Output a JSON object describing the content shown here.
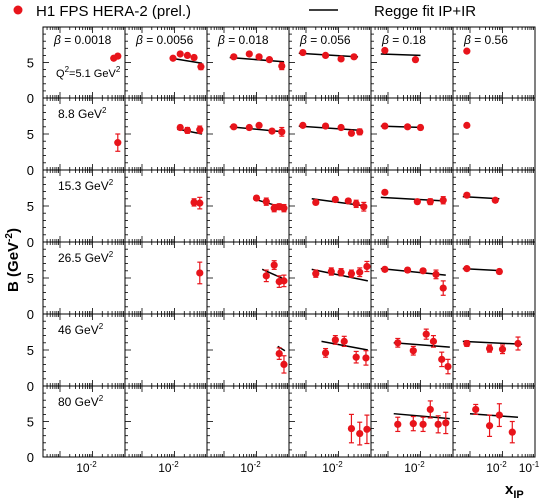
{
  "chart_data": {
    "type": "scatter",
    "legend": {
      "data_label": "H1 FPS HERA-2 (prel.)",
      "fit_label": "Regge fit IP+IR",
      "data_color": "#e8141b",
      "fit_color": "#000000",
      "placement": "top"
    },
    "ylabel": "B (GeV",
    "ylabel_sup": "-2",
    "ylabel_close": ")",
    "xlabel": "x",
    "xlabel_sub": "IP",
    "x_scale": "log",
    "xlim": [
      0.0003,
      0.1
    ],
    "ylim": [
      0,
      10
    ],
    "yticks": [
      "0",
      "5"
    ],
    "xtick_labels": [
      "10",
      "-2",
      "10",
      "-1"
    ],
    "beta_prefix": "β",
    "betas": [
      "= 0.0018",
      "= 0.0056",
      "= 0.018",
      "= 0.056",
      "= 0.18",
      "= 0.56"
    ],
    "q2_prefix": "Q",
    "q2_rows": [
      {
        "label": "=5.1 GeV",
        "sup": "2",
        "q2sup": "2"
      },
      {
        "label": "8.8 GeV",
        "sup": "2"
      },
      {
        "label": "15.3 GeV",
        "sup": "2"
      },
      {
        "label": "26.5 GeV",
        "sup": "2"
      },
      {
        "label": "46 GeV",
        "sup": "2"
      },
      {
        "label": "80 GeV",
        "sup": "2"
      }
    ],
    "panels": [
      {
        "row": 0,
        "col": 0,
        "points": [
          {
            "x": 0.045,
            "y": 5.6,
            "err": 0.3
          },
          {
            "x": 0.06,
            "y": 5.9,
            "err": 0.3
          }
        ],
        "fit": []
      },
      {
        "row": 0,
        "col": 1,
        "points": [
          {
            "x": 0.009,
            "y": 5.6,
            "err": 0.2
          },
          {
            "x": 0.015,
            "y": 6.2,
            "err": 0.2
          },
          {
            "x": 0.025,
            "y": 6.0,
            "err": 0.2
          },
          {
            "x": 0.04,
            "y": 5.7,
            "err": 0.3
          },
          {
            "x": 0.065,
            "y": 4.4,
            "err": 0.4
          }
        ],
        "fit": [
          [
            0.008,
            5.6
          ],
          [
            0.07,
            4.9
          ]
        ]
      },
      {
        "row": 0,
        "col": 2,
        "points": [
          {
            "x": 0.002,
            "y": 5.8,
            "err": 0.2
          },
          {
            "x": 0.006,
            "y": 6.2,
            "err": 0.2
          },
          {
            "x": 0.012,
            "y": 5.8,
            "err": 0.2
          },
          {
            "x": 0.025,
            "y": 5.4,
            "err": 0.3
          },
          {
            "x": 0.06,
            "y": 4.5,
            "err": 0.5
          }
        ],
        "fit": [
          [
            0.0015,
            5.7
          ],
          [
            0.07,
            5.1
          ]
        ]
      },
      {
        "row": 0,
        "col": 3,
        "points": [
          {
            "x": 0.0008,
            "y": 6.4,
            "err": 0.2
          },
          {
            "x": 0.004,
            "y": 6.0,
            "err": 0.2
          },
          {
            "x": 0.012,
            "y": 5.5,
            "err": 0.2
          },
          {
            "x": 0.03,
            "y": 5.8,
            "err": 0.3
          }
        ],
        "fit": [
          [
            0.0006,
            6.3
          ],
          [
            0.04,
            5.8
          ]
        ]
      },
      {
        "row": 0,
        "col": 4,
        "points": [
          {
            "x": 0.0008,
            "y": 6.7,
            "err": 0.2
          },
          {
            "x": 0.007,
            "y": 5.4,
            "err": 0.3
          }
        ],
        "fit": [
          [
            0.0006,
            6.2
          ],
          [
            0.01,
            6.0
          ]
        ]
      },
      {
        "row": 0,
        "col": 5,
        "points": [
          {
            "x": 0.0008,
            "y": 6.6,
            "err": 0.2
          }
        ],
        "fit": []
      },
      {
        "row": 1,
        "col": 0,
        "points": [
          {
            "x": 0.06,
            "y": 3.8,
            "err": 1.2
          }
        ],
        "fit": []
      },
      {
        "row": 1,
        "col": 1,
        "points": [
          {
            "x": 0.015,
            "y": 5.9,
            "err": 0.3
          },
          {
            "x": 0.025,
            "y": 5.5,
            "err": 0.4
          },
          {
            "x": 0.06,
            "y": 5.6,
            "err": 0.5
          }
        ],
        "fit": [
          [
            0.012,
            5.7
          ],
          [
            0.07,
            5.0
          ]
        ]
      },
      {
        "row": 1,
        "col": 2,
        "points": [
          {
            "x": 0.002,
            "y": 6.0,
            "err": 0.2
          },
          {
            "x": 0.006,
            "y": 5.9,
            "err": 0.2
          },
          {
            "x": 0.012,
            "y": 6.2,
            "err": 0.2
          },
          {
            "x": 0.03,
            "y": 5.4,
            "err": 0.3
          },
          {
            "x": 0.06,
            "y": 5.3,
            "err": 0.6
          }
        ],
        "fit": [
          [
            0.0015,
            6.0
          ],
          [
            0.07,
            5.3
          ]
        ]
      },
      {
        "row": 1,
        "col": 3,
        "points": [
          {
            "x": 0.0008,
            "y": 6.2,
            "err": 0.2
          },
          {
            "x": 0.004,
            "y": 6.1,
            "err": 0.2
          },
          {
            "x": 0.012,
            "y": 5.9,
            "err": 0.2
          },
          {
            "x": 0.025,
            "y": 5.1,
            "err": 0.3
          },
          {
            "x": 0.045,
            "y": 5.3,
            "err": 0.4
          }
        ],
        "fit": [
          [
            0.0006,
            6.1
          ],
          [
            0.05,
            5.5
          ]
        ]
      },
      {
        "row": 1,
        "col": 4,
        "points": [
          {
            "x": 0.0008,
            "y": 6.1,
            "err": 0.2
          },
          {
            "x": 0.004,
            "y": 6.0,
            "err": 0.2
          },
          {
            "x": 0.01,
            "y": 5.9,
            "err": 0.3
          }
        ],
        "fit": [
          [
            0.0006,
            6.1
          ],
          [
            0.012,
            5.9
          ]
        ]
      },
      {
        "row": 1,
        "col": 5,
        "points": [
          {
            "x": 0.0008,
            "y": 6.2,
            "err": 0.2
          }
        ],
        "fit": []
      },
      {
        "row": 2,
        "col": 1,
        "points": [
          {
            "x": 0.04,
            "y": 5.5,
            "err": 0.5
          },
          {
            "x": 0.06,
            "y": 5.4,
            "err": 0.8
          }
        ],
        "fit": []
      },
      {
        "row": 2,
        "col": 2,
        "points": [
          {
            "x": 0.01,
            "y": 6.1,
            "err": 0.3
          },
          {
            "x": 0.02,
            "y": 5.6,
            "err": 0.5
          },
          {
            "x": 0.035,
            "y": 4.7,
            "err": 0.5
          },
          {
            "x": 0.05,
            "y": 4.9,
            "err": 0.4
          },
          {
            "x": 0.07,
            "y": 4.7,
            "err": 0.5
          }
        ],
        "fit": [
          [
            0.008,
            6.0
          ],
          [
            0.075,
            4.7
          ]
        ]
      },
      {
        "row": 2,
        "col": 3,
        "points": [
          {
            "x": 0.002,
            "y": 5.5,
            "err": 0.3
          },
          {
            "x": 0.008,
            "y": 5.9,
            "err": 0.3
          },
          {
            "x": 0.02,
            "y": 5.7,
            "err": 0.3
          },
          {
            "x": 0.035,
            "y": 5.3,
            "err": 0.5
          },
          {
            "x": 0.06,
            "y": 4.9,
            "err": 0.6
          }
        ],
        "fit": [
          [
            0.0015,
            6.0
          ],
          [
            0.07,
            5.0
          ]
        ]
      },
      {
        "row": 2,
        "col": 4,
        "points": [
          {
            "x": 0.0008,
            "y": 6.9,
            "err": 0.2
          },
          {
            "x": 0.008,
            "y": 5.6,
            "err": 0.3
          },
          {
            "x": 0.02,
            "y": 5.6,
            "err": 0.4
          },
          {
            "x": 0.05,
            "y": 5.8,
            "err": 0.5
          }
        ],
        "fit": [
          [
            0.0006,
            6.2
          ],
          [
            0.06,
            5.7
          ]
        ]
      },
      {
        "row": 2,
        "col": 5,
        "points": [
          {
            "x": 0.0008,
            "y": 6.5,
            "err": 0.2
          },
          {
            "x": 0.006,
            "y": 5.8,
            "err": 0.3
          }
        ],
        "fit": [
          [
            0.0006,
            6.3
          ],
          [
            0.008,
            6.0
          ]
        ]
      },
      {
        "row": 3,
        "col": 1,
        "points": [
          {
            "x": 0.06,
            "y": 5.7,
            "err": 1.5
          }
        ],
        "fit": []
      },
      {
        "row": 3,
        "col": 2,
        "points": [
          {
            "x": 0.02,
            "y": 5.3,
            "err": 0.8
          },
          {
            "x": 0.035,
            "y": 6.8,
            "err": 0.6
          },
          {
            "x": 0.05,
            "y": 4.5,
            "err": 0.8
          },
          {
            "x": 0.07,
            "y": 4.6,
            "err": 0.8
          }
        ],
        "fit": [
          [
            0.015,
            6.2
          ],
          [
            0.075,
            4.8
          ]
        ]
      },
      {
        "row": 3,
        "col": 3,
        "points": [
          {
            "x": 0.002,
            "y": 5.6,
            "err": 0.5
          },
          {
            "x": 0.006,
            "y": 5.9,
            "err": 0.5
          },
          {
            "x": 0.012,
            "y": 5.8,
            "err": 0.5
          },
          {
            "x": 0.025,
            "y": 5.6,
            "err": 0.5
          },
          {
            "x": 0.045,
            "y": 5.8,
            "err": 0.6
          },
          {
            "x": 0.075,
            "y": 6.6,
            "err": 0.7
          }
        ],
        "fit": [
          [
            0.0015,
            6.2
          ],
          [
            0.08,
            4.6
          ]
        ]
      },
      {
        "row": 3,
        "col": 4,
        "points": [
          {
            "x": 0.0008,
            "y": 6.2,
            "err": 0.3
          },
          {
            "x": 0.004,
            "y": 6.1,
            "err": 0.3
          },
          {
            "x": 0.012,
            "y": 6.0,
            "err": 0.3
          },
          {
            "x": 0.03,
            "y": 5.5,
            "err": 0.6
          },
          {
            "x": 0.05,
            "y": 3.6,
            "err": 1.0
          }
        ],
        "fit": [
          [
            0.0006,
            6.3
          ],
          [
            0.06,
            5.4
          ]
        ]
      },
      {
        "row": 3,
        "col": 5,
        "points": [
          {
            "x": 0.0008,
            "y": 6.3,
            "err": 0.2
          },
          {
            "x": 0.008,
            "y": 5.9,
            "err": 0.3
          }
        ],
        "fit": [
          [
            0.0006,
            6.3
          ],
          [
            0.01,
            6.0
          ]
        ]
      },
      {
        "row": 4,
        "col": 2,
        "points": [
          {
            "x": 0.05,
            "y": 4.5,
            "err": 0.8
          },
          {
            "x": 0.07,
            "y": 3.0,
            "err": 1.2
          }
        ],
        "fit": [
          [
            0.045,
            5.5
          ],
          [
            0.075,
            4.9
          ]
        ]
      },
      {
        "row": 4,
        "col": 3,
        "points": [
          {
            "x": 0.004,
            "y": 4.6,
            "err": 0.6
          },
          {
            "x": 0.008,
            "y": 6.4,
            "err": 0.6
          },
          {
            "x": 0.015,
            "y": 6.2,
            "err": 0.7
          },
          {
            "x": 0.035,
            "y": 4.0,
            "err": 0.8
          },
          {
            "x": 0.07,
            "y": 3.9,
            "err": 1.0
          }
        ],
        "fit": [
          [
            0.003,
            6.2
          ],
          [
            0.08,
            5.0
          ]
        ]
      },
      {
        "row": 4,
        "col": 4,
        "points": [
          {
            "x": 0.002,
            "y": 6.0,
            "err": 0.6
          },
          {
            "x": 0.006,
            "y": 4.9,
            "err": 0.6
          },
          {
            "x": 0.015,
            "y": 7.2,
            "err": 0.7
          },
          {
            "x": 0.025,
            "y": 6.2,
            "err": 0.8
          },
          {
            "x": 0.045,
            "y": 3.7,
            "err": 1.0
          },
          {
            "x": 0.07,
            "y": 2.7,
            "err": 1.0
          }
        ],
        "fit": [
          [
            0.0015,
            6.0
          ],
          [
            0.08,
            5.4
          ]
        ]
      },
      {
        "row": 4,
        "col": 5,
        "points": [
          {
            "x": 0.0008,
            "y": 5.9,
            "err": 0.4
          },
          {
            "x": 0.004,
            "y": 5.2,
            "err": 0.5
          },
          {
            "x": 0.01,
            "y": 5.1,
            "err": 0.6
          },
          {
            "x": 0.03,
            "y": 5.9,
            "err": 0.9
          }
        ],
        "fit": [
          [
            0.0006,
            6.2
          ],
          [
            0.04,
            5.8
          ]
        ]
      },
      {
        "row": 5,
        "col": 3,
        "points": [
          {
            "x": 0.025,
            "y": 4.0,
            "err": 2.0
          },
          {
            "x": 0.045,
            "y": 3.3,
            "err": 1.6
          },
          {
            "x": 0.075,
            "y": 3.9,
            "err": 2.0
          }
        ],
        "fit": []
      },
      {
        "row": 5,
        "col": 4,
        "points": [
          {
            "x": 0.002,
            "y": 4.6,
            "err": 1.0
          },
          {
            "x": 0.006,
            "y": 4.7,
            "err": 1.0
          },
          {
            "x": 0.012,
            "y": 4.6,
            "err": 1.0
          },
          {
            "x": 0.02,
            "y": 6.7,
            "err": 1.2
          },
          {
            "x": 0.035,
            "y": 4.6,
            "err": 1.2
          },
          {
            "x": 0.06,
            "y": 4.8,
            "err": 1.5
          }
        ],
        "fit": [
          [
            0.0015,
            6.1
          ],
          [
            0.08,
            5.4
          ]
        ]
      },
      {
        "row": 5,
        "col": 5,
        "points": [
          {
            "x": 0.0015,
            "y": 6.7,
            "err": 0.7
          },
          {
            "x": 0.004,
            "y": 4.4,
            "err": 1.5
          },
          {
            "x": 0.008,
            "y": 5.9,
            "err": 1.6
          },
          {
            "x": 0.02,
            "y": 3.5,
            "err": 1.5
          }
        ],
        "fit": [
          [
            0.001,
            6.1
          ],
          [
            0.03,
            5.6
          ]
        ]
      }
    ]
  }
}
